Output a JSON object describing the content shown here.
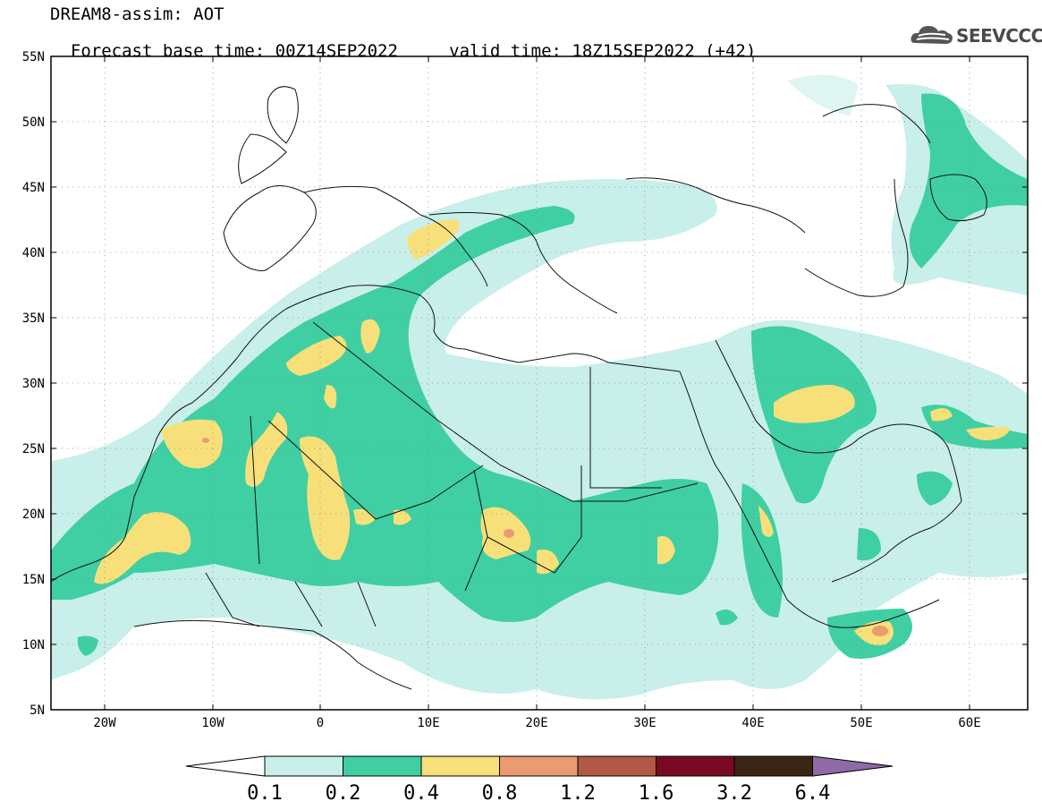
{
  "header": {
    "title": "DREAM8-assim: AOT",
    "base_time_label": "Forecast base time: 00Z14SEP2022",
    "valid_time_label": "valid time: 18Z15SEP2022 (+42)"
  },
  "logo": {
    "text": "SEEVCCC",
    "icon": "cloud-icon"
  },
  "map": {
    "lat_labels": [
      "55N",
      "50N",
      "45N",
      "40N",
      "35N",
      "30N",
      "25N",
      "20N",
      "15N",
      "10N",
      "5N"
    ],
    "lon_labels": [
      "20W",
      "10W",
      "0",
      "10E",
      "20E",
      "30E",
      "40E",
      "50E",
      "60E"
    ]
  },
  "colorbar": {
    "labels": [
      "0.1",
      "0.2",
      "0.4",
      "0.8",
      "1.2",
      "1.6",
      "3.2",
      "6.4"
    ],
    "colors": [
      "#ffffff",
      "#c8efe9",
      "#3fcfa3",
      "#f7e07a",
      "#eb9a72",
      "#b25846",
      "#7a0a22",
      "#3a2414",
      "#8e6aa6"
    ]
  }
}
